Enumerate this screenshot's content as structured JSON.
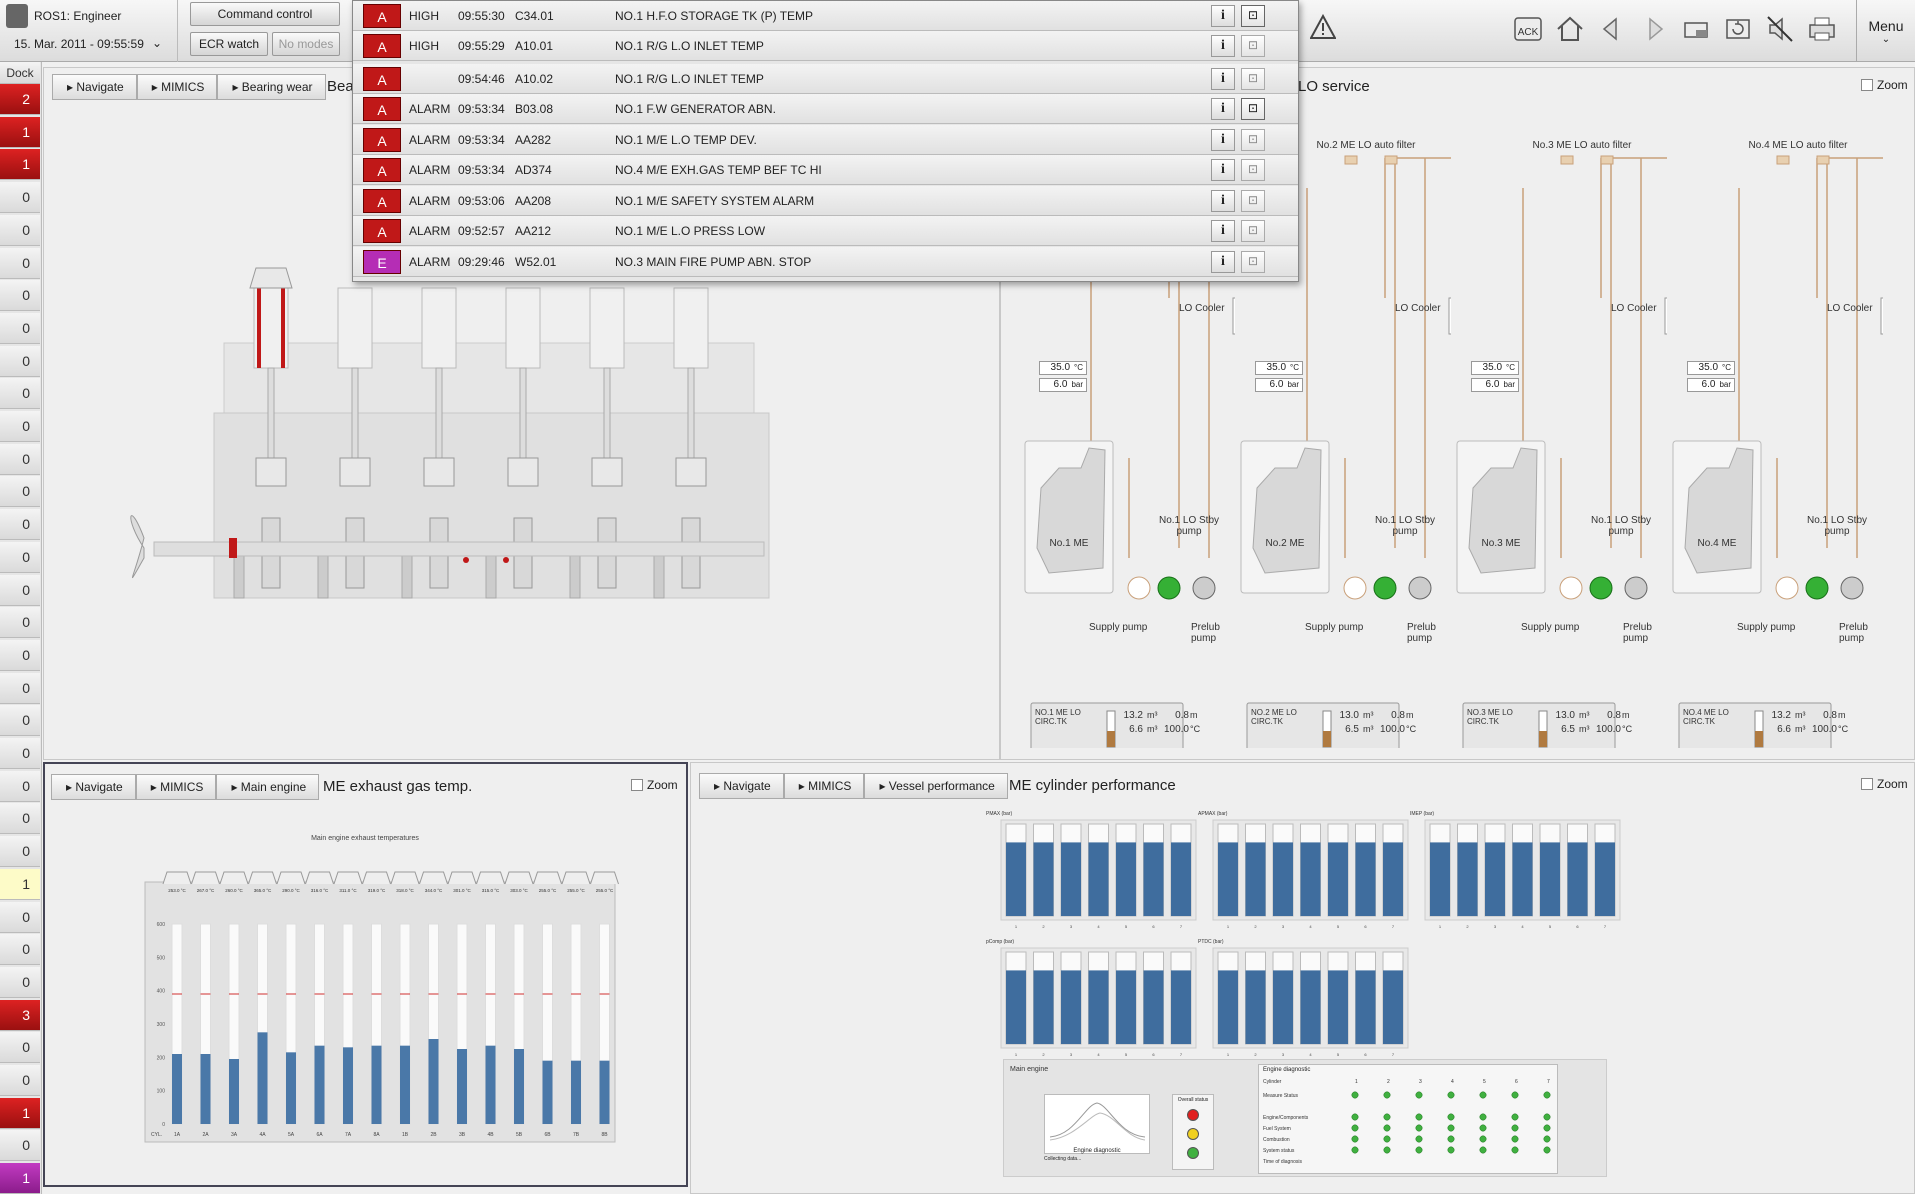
{
  "identity": {
    "user": "ROS1: Engineer",
    "datetime": "15. Mar. 2011 - 09:55:59"
  },
  "header": {
    "command_control": "Command control",
    "ecr_watch": "ECR watch",
    "no_modes": "No modes",
    "alarm_count": "9",
    "menu": "Menu"
  },
  "toolbar": {
    "icons": [
      "ack-icon",
      "home-icon",
      "back-icon",
      "forward-icon",
      "window-icon",
      "refresh-icon",
      "mute-icon",
      "print-icon"
    ],
    "ack_label": "ACK"
  },
  "dock": {
    "label": "Dock",
    "counts": [
      "2",
      "1",
      "1",
      "0",
      "0",
      "0",
      "0",
      "0",
      "0",
      "0",
      "0",
      "0",
      "0",
      "0",
      "0",
      "0",
      "0",
      "0",
      "0",
      "0",
      "0",
      "0",
      "0",
      "0",
      "1",
      "0",
      "0",
      "0",
      "3",
      "0",
      "0",
      "1",
      "0",
      "1"
    ],
    "states": [
      "red",
      "red",
      "red",
      "",
      "",
      "",
      "",
      "",
      "",
      "",
      "",
      "",
      "",
      "",
      "",
      "",
      "",
      "",
      "",
      "",
      "",
      "",
      "",
      "",
      "yel",
      "",
      "",
      "",
      "red",
      "",
      "",
      "red",
      "",
      "mag"
    ]
  },
  "alarms": [
    {
      "sev": "A",
      "type": "HIGH",
      "time": "09:55:30",
      "tag": "C34.01",
      "text": "NO.1 H.F.O STORAGE TK (P) TEMP",
      "color": "#c01818",
      "ack": true
    },
    {
      "sev": "A",
      "type": "HIGH",
      "time": "09:55:29",
      "tag": "A10.01",
      "text": "NO.1 R/G L.O INLET TEMP",
      "color": "#c01818",
      "ack": false
    },
    {
      "sev": "A",
      "type": "",
      "time": "09:54:46",
      "tag": "A10.02",
      "text": "NO.1 R/G L.O INLET TEMP",
      "color": "#c01818",
      "ack": false
    },
    {
      "sev": "A",
      "type": "ALARM",
      "time": "09:53:34",
      "tag": "B03.08",
      "text": "NO.1 F.W GENERATOR ABN.",
      "color": "#c01818",
      "ack": true
    },
    {
      "sev": "A",
      "type": "ALARM",
      "time": "09:53:34",
      "tag": "AA282",
      "text": "NO.1 M/E L.O TEMP DEV.",
      "color": "#c01818",
      "ack": false
    },
    {
      "sev": "A",
      "type": "ALARM",
      "time": "09:53:34",
      "tag": "AD374",
      "text": "NO.4 M/E EXH.GAS TEMP BEF TC HI",
      "color": "#c01818",
      "ack": false
    },
    {
      "sev": "A",
      "type": "ALARM",
      "time": "09:53:06",
      "tag": "AA208",
      "text": "NO.1 M/E SAFETY SYSTEM ALARM",
      "color": "#c01818",
      "ack": false
    },
    {
      "sev": "A",
      "type": "ALARM",
      "time": "09:52:57",
      "tag": "AA212",
      "text": "NO.1 M/E L.O PRESS LOW",
      "color": "#c01818",
      "ack": false
    },
    {
      "sev": "E",
      "type": "ALARM",
      "time": "09:29:46",
      "tag": "W52.01",
      "text": "NO.3 MAIN FIRE PUMP ABN. STOP",
      "color": "#b52db5",
      "ack": false
    }
  ],
  "crumbs": {
    "navigate": "Navigate",
    "mimics": "MIMICS",
    "bearing": "Bearing wear",
    "main_engine": "Main engine",
    "vessel": "Vessel performance"
  },
  "panel_tl": {
    "title": "Bea"
  },
  "panel_tr": {
    "title": "LO service",
    "zoom": "Zoom"
  },
  "panel_bl": {
    "title": "ME exhaust gas temp.",
    "zoom": "Zoom",
    "chart_title": "Main engine exhaust temperatures"
  },
  "panel_br": {
    "title": "ME cylinder performance",
    "zoom": "Zoom"
  },
  "lo_units": [
    {
      "filter": "",
      "me": "No.1 ME",
      "stby": "No.1 LO Stby pump",
      "temp": "35.0",
      "press": "6.0",
      "tank": "NO.1 ME LO CIRC.TK",
      "v1": "13.2",
      "v2": "6.6",
      "m": "0.8",
      "c": "100.0"
    },
    {
      "filter": "No.2 ME LO auto filter",
      "me": "No.2 ME",
      "stby": "No.1 LO Stby pump",
      "temp": "35.0",
      "press": "6.0",
      "tank": "NO.2 ME LO CIRC.TK",
      "v1": "13.0",
      "v2": "6.5",
      "m": "0.8",
      "c": "100.0"
    },
    {
      "filter": "No.3 ME LO auto filter",
      "me": "No.3 ME",
      "stby": "No.1 LO Stby pump",
      "temp": "35.0",
      "press": "6.0",
      "tank": "NO.3 ME LO CIRC.TK",
      "v1": "13.0",
      "v2": "6.5",
      "m": "0.8",
      "c": "100.0"
    },
    {
      "filter": "No.4 ME LO auto filter",
      "me": "No.4 ME",
      "stby": "No.1 LO Stby pump",
      "temp": "35.0",
      "press": "6.0",
      "tank": "NO.4 ME LO CIRC.TK",
      "v1": "13.2",
      "v2": "6.6",
      "m": "0.8",
      "c": "100.0"
    }
  ],
  "lo_labels": {
    "cooler": "LO Cooler",
    "supply": "Supply pump",
    "prelub": "Prelub pump",
    "c_unit": "°C",
    "bar_unit": "bar",
    "m3": "m³",
    "m": "m"
  },
  "chart_data": [
    {
      "type": "bar",
      "title": "Main engine exhaust temperatures",
      "xlabel": "CYL.",
      "categories": [
        "1A",
        "2A",
        "3A",
        "4A",
        "5A",
        "6A",
        "7A",
        "8A",
        "1B",
        "2B",
        "3B",
        "4B",
        "5B",
        "6B",
        "7B",
        "8B"
      ],
      "values": [
        210,
        210,
        195,
        275,
        215,
        235,
        230,
        235,
        235,
        255,
        225,
        235,
        225,
        190,
        190,
        190
      ],
      "readouts": [
        "253.0 °C",
        "267.0 °C",
        "260.0 °C",
        "365.0 °C",
        "290.0 °C",
        "316.0 °C",
        "311.0 °C",
        "319.0 °C",
        "318.0 °C",
        "344.0 °C",
        "301.0 °C",
        "315.0 °C",
        "303.0 °C",
        "255.0 °C",
        "255.0 °C",
        "255.0 °C"
      ],
      "ylim": [
        0,
        600
      ],
      "yticks": [
        0,
        100,
        200,
        300,
        400,
        500,
        600
      ],
      "limit_line": 390
    },
    {
      "type": "bar",
      "panels": [
        {
          "label": "PMAX (bar)",
          "categories": [
            "1",
            "2",
            "3",
            "4",
            "5",
            "6",
            "7"
          ],
          "values": [
            80,
            80,
            80,
            80,
            80,
            80,
            80
          ],
          "ylim": [
            0,
            100
          ]
        },
        {
          "label": "APMAX (bar)",
          "categories": [
            "1",
            "2",
            "3",
            "4",
            "5",
            "6",
            "7"
          ],
          "values": [
            80,
            80,
            80,
            80,
            80,
            80,
            80
          ],
          "ylim": [
            0,
            100
          ]
        },
        {
          "label": "IMEP (bar)",
          "categories": [
            "1",
            "2",
            "3",
            "4",
            "5",
            "6",
            "7"
          ],
          "values": [
            80,
            80,
            80,
            80,
            80,
            80,
            80
          ],
          "ylim": [
            0,
            100
          ]
        },
        {
          "label": "pComp (bar)",
          "categories": [
            "1",
            "2",
            "3",
            "4",
            "5",
            "6",
            "7"
          ],
          "values": [
            80,
            80,
            80,
            80,
            80,
            80,
            80
          ],
          "ylim": [
            0,
            100
          ]
        },
        {
          "label": "PTDC (bar)",
          "categories": [
            "1",
            "2",
            "3",
            "4",
            "5",
            "6",
            "7"
          ],
          "values": [
            80,
            80,
            80,
            80,
            80,
            80,
            80
          ],
          "ylim": [
            0,
            100
          ]
        }
      ]
    }
  ],
  "diagnostics": {
    "main_engine": "Main engine",
    "overall": "Overall status",
    "thumb": "Engine diagnostic",
    "collecting": "Collecting data...",
    "table_title": "Engine diagnostic",
    "cols": [
      "Cylinder",
      "1",
      "2",
      "3",
      "4",
      "5",
      "6",
      "7"
    ],
    "rows": [
      "Measure Status",
      "",
      "Engine/Components",
      "Fuel System",
      "Combustion",
      "System status",
      "Time of diagnosis"
    ],
    "status_colors": [
      "#e02020",
      "#f0d020",
      "#40b040"
    ]
  }
}
